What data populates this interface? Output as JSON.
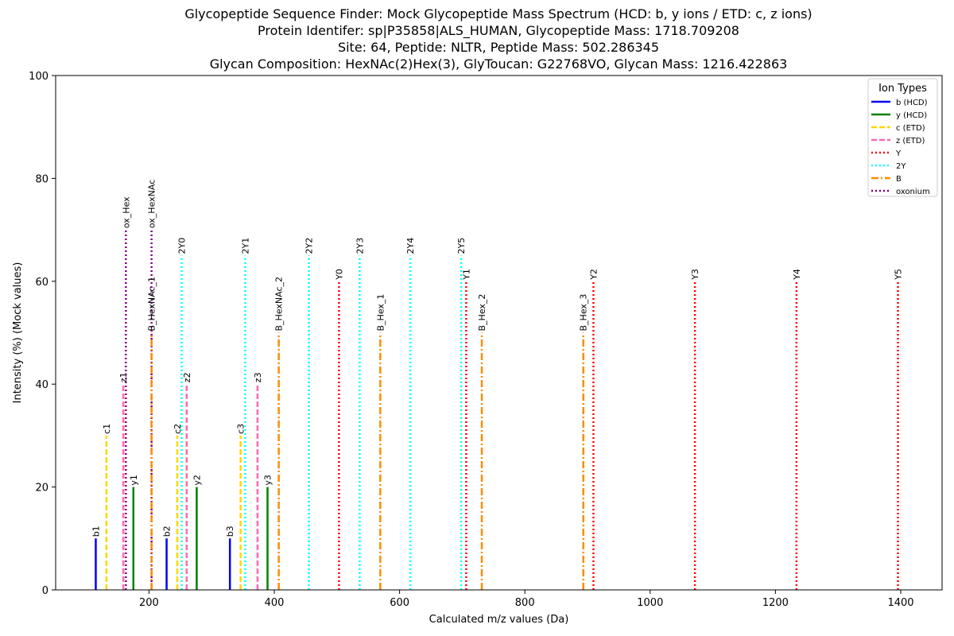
{
  "chart_data": {
    "type": "bar",
    "title_lines": [
      "Glycopeptide Sequence Finder: Mock Glycopeptide Mass Spectrum (HCD: b, y ions / ETD: c, z ions)",
      "Protein Identifer: sp|P35858|ALS_HUMAN, Glycopeptide Mass: 1718.709208",
      "Site: 64, Peptide: NLTR, Peptide Mass: 502.286345",
      "Glycan Composition: HexNAc(2)Hex(3), GlyToucan: G22768VO, Glycan Mass: 1216.422863"
    ],
    "xlabel": "Calculated m/z values (Da)",
    "ylabel": "Intensity (%) (Mock values)",
    "xlim": [
      51,
      1466
    ],
    "ylim": [
      0,
      100
    ],
    "xticks": [
      200,
      400,
      600,
      800,
      1000,
      1200,
      1400
    ],
    "yticks": [
      0,
      20,
      40,
      60,
      80,
      100
    ],
    "grid": false,
    "legend": {
      "title": "Ion Types",
      "placement": "top-right",
      "entries": [
        {
          "key": "b",
          "label": "b (HCD)"
        },
        {
          "key": "y",
          "label": "y (HCD)"
        },
        {
          "key": "c",
          "label": "c (ETD)"
        },
        {
          "key": "z",
          "label": "z (ETD)"
        },
        {
          "key": "Y",
          "label": "Y"
        },
        {
          "key": "2Y",
          "label": "2Y"
        },
        {
          "key": "B",
          "label": "B"
        },
        {
          "key": "ox",
          "label": "oxonium"
        }
      ]
    },
    "series_styles": {
      "b": {
        "color": "#0000ff",
        "dash": ""
      },
      "y": {
        "color": "#008000",
        "dash": ""
      },
      "c": {
        "color": "#ffd700",
        "dash": "7,3"
      },
      "z": {
        "color": "#ff69b4",
        "dash": "7,3"
      },
      "Y": {
        "color": "#ff0000",
        "dash": "2,3"
      },
      "2Y": {
        "color": "#00ffff",
        "dash": "2,3"
      },
      "B": {
        "color": "#ff8c00",
        "dash": "9,3,2,3"
      },
      "ox": {
        "color": "#800080",
        "dash": "2,3"
      }
    },
    "peaks": [
      {
        "label": "b1",
        "type": "b",
        "x": 115.05,
        "y": 10
      },
      {
        "label": "b2",
        "type": "b",
        "x": 228.13,
        "y": 10
      },
      {
        "label": "b3",
        "type": "b",
        "x": 329.18,
        "y": 10
      },
      {
        "label": "y1",
        "type": "y",
        "x": 175.12,
        "y": 20
      },
      {
        "label": "y2",
        "type": "y",
        "x": 276.17,
        "y": 20
      },
      {
        "label": "y3",
        "type": "y",
        "x": 389.25,
        "y": 20
      },
      {
        "label": "c1",
        "type": "c",
        "x": 132.08,
        "y": 30
      },
      {
        "label": "c2",
        "type": "c",
        "x": 245.16,
        "y": 30
      },
      {
        "label": "c3",
        "type": "c",
        "x": 346.21,
        "y": 30
      },
      {
        "label": "z1",
        "type": "z",
        "x": 159.1,
        "y": 40
      },
      {
        "label": "z2",
        "type": "z",
        "x": 260.15,
        "y": 40
      },
      {
        "label": "z3",
        "type": "z",
        "x": 373.23,
        "y": 40
      },
      {
        "label": "ox_Hex",
        "type": "ox",
        "x": 163.06,
        "y": 70
      },
      {
        "label": "ox_HexNAc",
        "type": "ox",
        "x": 204.09,
        "y": 70
      },
      {
        "label": "B_HexNAc_1",
        "type": "B",
        "x": 204.09,
        "y": 50
      },
      {
        "label": "B_HexNAc_2",
        "type": "B",
        "x": 407.17,
        "y": 50
      },
      {
        "label": "B_Hex_1",
        "type": "B",
        "x": 569.22,
        "y": 50
      },
      {
        "label": "B_Hex_2",
        "type": "B",
        "x": 731.27,
        "y": 50
      },
      {
        "label": "B_Hex_3",
        "type": "B",
        "x": 893.33,
        "y": 50
      },
      {
        "label": "Y0",
        "type": "Y",
        "x": 503.29,
        "y": 60
      },
      {
        "label": "Y1",
        "type": "Y",
        "x": 706.37,
        "y": 60
      },
      {
        "label": "Y2",
        "type": "Y",
        "x": 909.45,
        "y": 60
      },
      {
        "label": "Y3",
        "type": "Y",
        "x": 1071.5,
        "y": 60
      },
      {
        "label": "Y4",
        "type": "Y",
        "x": 1233.56,
        "y": 60
      },
      {
        "label": "Y5",
        "type": "Y",
        "x": 1395.61,
        "y": 60
      },
      {
        "label": "2Y0",
        "type": "2Y",
        "x": 252.15,
        "y": 65
      },
      {
        "label": "2Y1",
        "type": "2Y",
        "x": 353.69,
        "y": 65
      },
      {
        "label": "2Y2",
        "type": "2Y",
        "x": 455.23,
        "y": 65
      },
      {
        "label": "2Y3",
        "type": "2Y",
        "x": 536.26,
        "y": 65
      },
      {
        "label": "2Y4",
        "type": "2Y",
        "x": 617.28,
        "y": 65
      },
      {
        "label": "2Y5",
        "type": "2Y",
        "x": 698.31,
        "y": 65
      }
    ]
  }
}
